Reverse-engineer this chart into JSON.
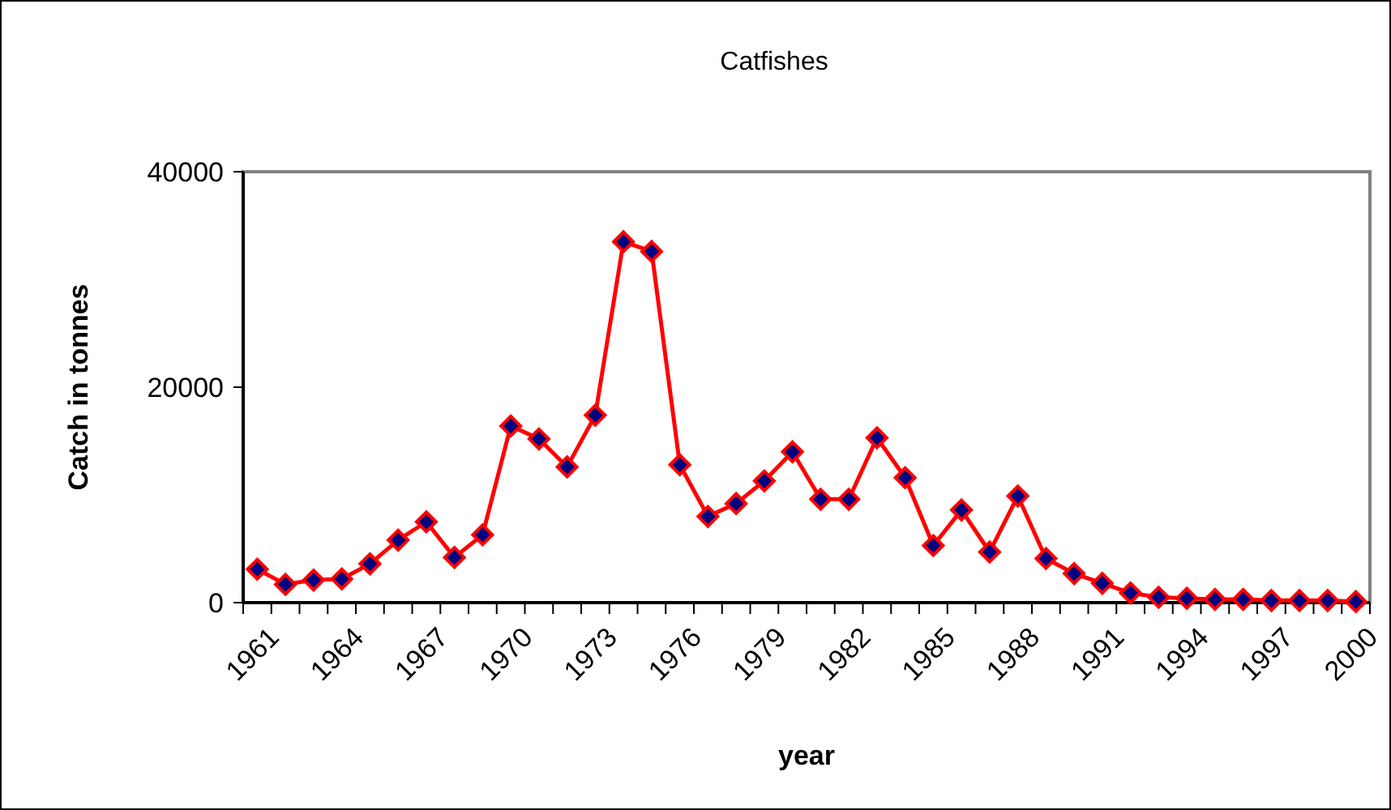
{
  "chart_data": {
    "type": "line",
    "title": "Catfishes",
    "xlabel": "year",
    "ylabel": "Catch in tonnes",
    "categories": [
      "1961",
      null,
      null,
      "1964",
      null,
      null,
      "1967",
      null,
      null,
      "1970",
      null,
      null,
      "1973",
      null,
      null,
      "1976",
      null,
      null,
      "1979",
      null,
      null,
      "1982",
      null,
      null,
      "1985",
      null,
      null,
      "1988",
      null,
      null,
      "1991",
      null,
      null,
      "1994",
      null,
      null,
      "1997",
      null,
      null,
      "2000"
    ],
    "series": [
      {
        "color": "#ff0000",
        "values": [
          3100,
          1700,
          2100,
          2200,
          3600,
          5800,
          7500,
          4200,
          6300,
          16400,
          15200,
          12600,
          17400,
          33500,
          32600,
          12800,
          8000,
          9200,
          11300,
          14000,
          9600,
          9600,
          15300,
          11600,
          5300,
          8600,
          4700,
          9900,
          4100,
          2700,
          1800,
          900,
          500,
          400,
          300,
          300,
          200,
          200,
          200,
          100
        ]
      }
    ],
    "ylim": [
      0,
      40000
    ],
    "yticks": [
      0,
      20000,
      40000
    ],
    "grid": false,
    "marker": "diamond",
    "line_style": "solid"
  }
}
